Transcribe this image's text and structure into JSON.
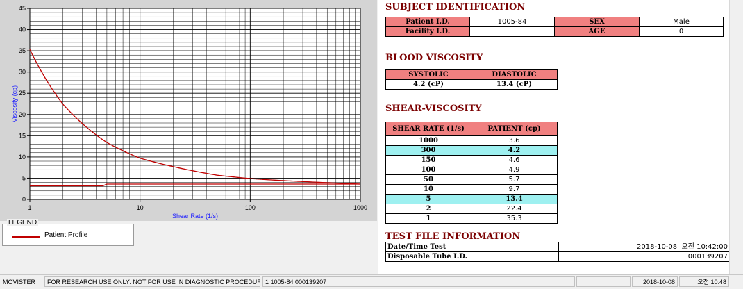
{
  "chart_data": {
    "type": "line",
    "xlabel": "Shear Rate (1/s)",
    "ylabel": "Viscosity (cp)",
    "xscale": "log",
    "xlim": [
      1,
      1000
    ],
    "ylim": [
      0,
      45
    ],
    "x_ticks": [
      "1",
      "10",
      "100",
      "1000"
    ],
    "y_ticks": [
      "0",
      "5",
      "10",
      "15",
      "20",
      "25",
      "30",
      "35",
      "40",
      "45"
    ],
    "grid": true,
    "series": [
      {
        "name": "Patient Profile",
        "x": [
          1,
          2,
          5,
          10,
          50,
          100,
          150,
          300,
          1000
        ],
        "y": [
          35.3,
          22.4,
          13.4,
          9.7,
          5.7,
          4.9,
          4.6,
          4.2,
          3.6
        ]
      },
      {
        "x": [
          1,
          4.6,
          5,
          1000
        ],
        "y": [
          3.2,
          3.2,
          3.6,
          3.6
        ]
      }
    ],
    "colors": [
      "#c00000",
      "#c00000"
    ]
  },
  "legend": {
    "title": "LEGEND",
    "entry": "Patient Profile"
  },
  "subject": {
    "title": "SUBJECT IDENTIFICATION",
    "patient_id_label": "Patient I.D.",
    "patient_id": "1005-84",
    "sex_label": "SEX",
    "sex": "Male",
    "facility_id_label": "Facility I.D.",
    "facility_id": "",
    "age_label": "AGE",
    "age": "0"
  },
  "blood": {
    "title": "BLOOD VISCOSITY",
    "systolic_label": "SYSTOLIC",
    "diastolic_label": "DIASTOLIC",
    "systolic": "4.2 (cP)",
    "diastolic": "13.4 (cP)"
  },
  "shear": {
    "title": "SHEAR-VISCOSITY",
    "col1": "SHEAR RATE (1/s)",
    "col2": "PATIENT (cp)",
    "rows": [
      {
        "rate": "1000",
        "value": "3.6",
        "hl": false
      },
      {
        "rate": "300",
        "value": "4.2",
        "hl": true
      },
      {
        "rate": "150",
        "value": "4.6",
        "hl": false
      },
      {
        "rate": "100",
        "value": "4.9",
        "hl": false
      },
      {
        "rate": "50",
        "value": "5.7",
        "hl": false
      },
      {
        "rate": "10",
        "value": "9.7",
        "hl": false
      },
      {
        "rate": "5",
        "value": "13.4",
        "hl": true
      },
      {
        "rate": "2",
        "value": "22.4",
        "hl": false
      },
      {
        "rate": "1",
        "value": "35.3",
        "hl": false
      }
    ]
  },
  "testfile": {
    "title": "TEST FILE INFORMATION",
    "datetime_label": "Date/Time Test",
    "datetime": "2018-10-08  오전 10:42:00",
    "tube_label": "Disposable Tube I.D.",
    "tube": "000139207"
  },
  "status": {
    "app": "MOVISTER",
    "notice": "FOR RESEARCH USE ONLY: NOT FOR USE IN DIAGNOSTIC PROCEDURES",
    "info": "1  1005-84  000139207",
    "date": "2018-10-08",
    "time": "오전 10:48"
  }
}
